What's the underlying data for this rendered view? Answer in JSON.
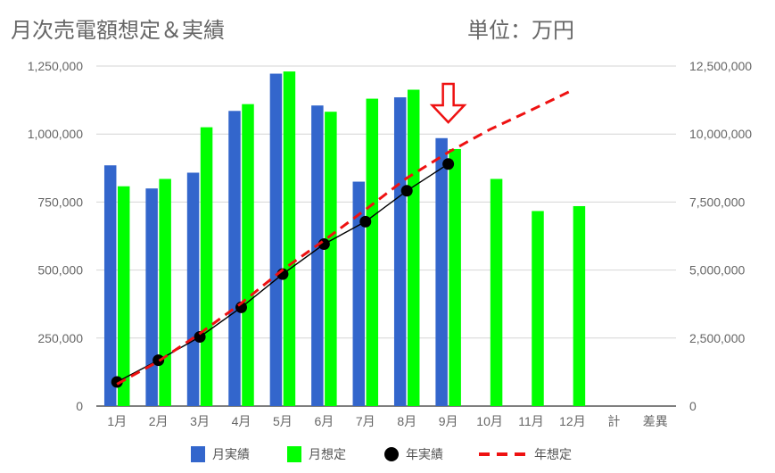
{
  "chart_data": {
    "type": "bar",
    "title": "月次売電額想定＆実績",
    "unit_label": "単位：万円",
    "categories": [
      "1月",
      "2月",
      "3月",
      "4月",
      "5月",
      "6月",
      "7月",
      "8月",
      "9月",
      "10月",
      "11月",
      "12月",
      "計",
      "差異"
    ],
    "y_left": {
      "ticks": [
        "0",
        "250,000",
        "500,000",
        "750,000",
        "1,000,000",
        "1,250,000"
      ],
      "range": [
        0,
        1250000
      ]
    },
    "y_right": {
      "ticks": [
        "0",
        "2,500,000",
        "5,000,000",
        "7,500,000",
        "10,000,000",
        "12,500,000"
      ],
      "range": [
        0,
        12500000
      ]
    },
    "grid": true,
    "legend_position": "bottom",
    "series": [
      {
        "name": "月実績",
        "type": "bar",
        "axis": "left",
        "color": "#3366cc",
        "values": [
          885000,
          800000,
          858000,
          1085000,
          1222000,
          1105000,
          825000,
          1135000,
          985000,
          null,
          null,
          null,
          null,
          null
        ]
      },
      {
        "name": "月想定",
        "type": "bar",
        "axis": "left",
        "color": "#00ff00",
        "values": [
          808000,
          835000,
          1025000,
          1110000,
          1230000,
          1082000,
          1130000,
          1163000,
          945000,
          835000,
          717000,
          735000,
          null,
          null
        ]
      },
      {
        "name": "年実績",
        "type": "line",
        "axis": "right",
        "color": "#000000",
        "marker": "circle",
        "values": [
          885000,
          1685000,
          2543000,
          3628000,
          4850000,
          5955000,
          6780000,
          7915000,
          8900000,
          null,
          null,
          null,
          null,
          null
        ]
      },
      {
        "name": "年想定",
        "type": "line",
        "axis": "right",
        "color": "#ee1111",
        "dashed": true,
        "values": [
          808000,
          1643000,
          2668000,
          3778000,
          5008000,
          6090000,
          7220000,
          8383000,
          9328000,
          10163000,
          10880000,
          11615000,
          null,
          null
        ]
      }
    ],
    "annotation": {
      "type": "arrow-down",
      "category": "9月",
      "color": "#ee1111"
    }
  }
}
